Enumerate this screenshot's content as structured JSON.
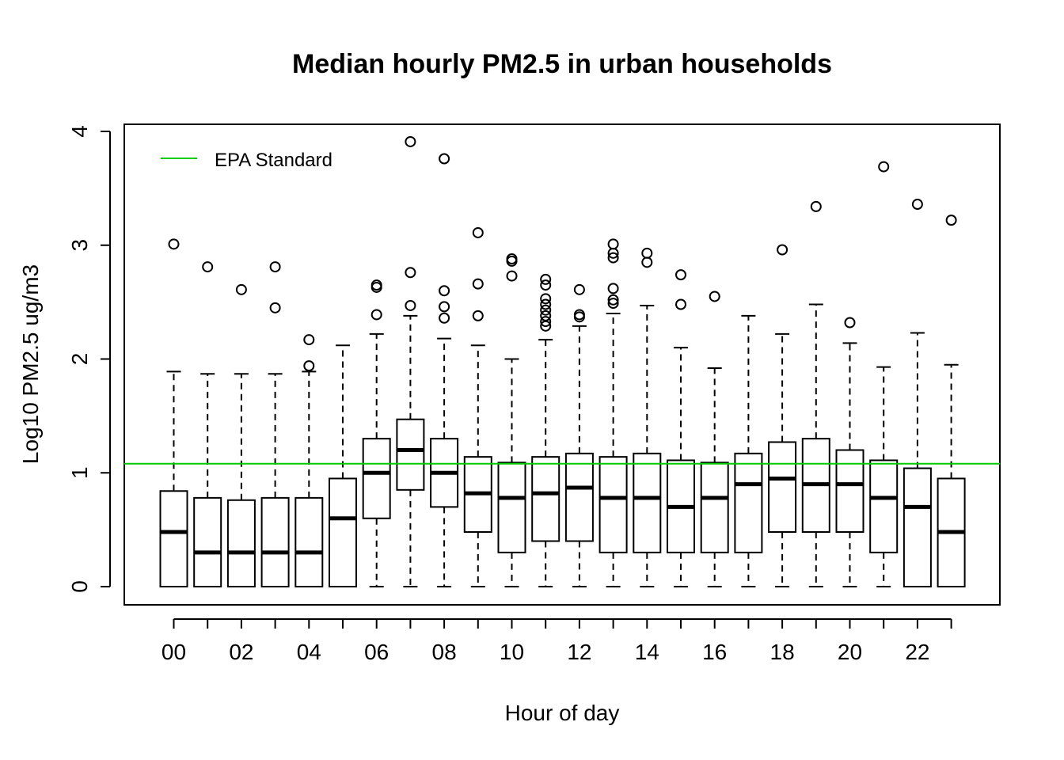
{
  "chart_data": {
    "type": "box",
    "title": "Median hourly PM2.5 in urban households",
    "xlabel": "Hour of day",
    "ylabel": "Log10 PM2.5 ug/m3",
    "ylim": [
      0,
      4
    ],
    "y_ticks": [
      "0",
      "1",
      "2",
      "3",
      "4"
    ],
    "categories": [
      "00",
      "01",
      "02",
      "03",
      "04",
      "05",
      "06",
      "07",
      "08",
      "09",
      "10",
      "11",
      "12",
      "13",
      "14",
      "15",
      "16",
      "17",
      "18",
      "19",
      "20",
      "21",
      "22",
      "23"
    ],
    "x_tick_labels": [
      "00",
      "02",
      "04",
      "06",
      "08",
      "10",
      "12",
      "14",
      "16",
      "18",
      "20",
      "22"
    ],
    "boxes": [
      {
        "whisker_low": 0,
        "q1": 0,
        "median": 0.48,
        "q3": 0.84,
        "whisker_high": 1.89,
        "outliers": [
          3.01
        ]
      },
      {
        "whisker_low": 0,
        "q1": 0,
        "median": 0.3,
        "q3": 0.78,
        "whisker_high": 1.87,
        "outliers": [
          2.81
        ]
      },
      {
        "whisker_low": 0,
        "q1": 0,
        "median": 0.3,
        "q3": 0.76,
        "whisker_high": 1.87,
        "outliers": [
          2.61
        ]
      },
      {
        "whisker_low": 0,
        "q1": 0,
        "median": 0.3,
        "q3": 0.78,
        "whisker_high": 1.87,
        "outliers": [
          2.81,
          2.45
        ]
      },
      {
        "whisker_low": 0,
        "q1": 0,
        "median": 0.3,
        "q3": 0.78,
        "whisker_high": 1.89,
        "outliers": [
          2.17,
          1.94
        ]
      },
      {
        "whisker_low": 0,
        "q1": 0,
        "median": 0.6,
        "q3": 0.95,
        "whisker_high": 2.12,
        "outliers": []
      },
      {
        "whisker_low": 0,
        "q1": 0.6,
        "median": 1.0,
        "q3": 1.3,
        "whisker_high": 2.22,
        "outliers": [
          2.65,
          2.63,
          2.39
        ]
      },
      {
        "whisker_low": 0,
        "q1": 0.85,
        "median": 1.2,
        "q3": 1.47,
        "whisker_high": 2.38,
        "outliers": [
          3.91,
          2.76,
          2.47
        ]
      },
      {
        "whisker_low": 0,
        "q1": 0.7,
        "median": 1.0,
        "q3": 1.3,
        "whisker_high": 2.18,
        "outliers": [
          3.76,
          2.6,
          2.46,
          2.36
        ]
      },
      {
        "whisker_low": 0,
        "q1": 0.48,
        "median": 0.82,
        "q3": 1.14,
        "whisker_high": 2.12,
        "outliers": [
          3.11,
          2.66,
          2.38
        ]
      },
      {
        "whisker_low": 0,
        "q1": 0.3,
        "median": 0.78,
        "q3": 1.09,
        "whisker_high": 2.0,
        "outliers": [
          2.88,
          2.86,
          2.73
        ]
      },
      {
        "whisker_low": 0,
        "q1": 0.4,
        "median": 0.82,
        "q3": 1.14,
        "whisker_high": 2.17,
        "outliers": [
          2.7,
          2.65,
          2.53,
          2.48,
          2.43,
          2.38,
          2.33,
          2.29
        ]
      },
      {
        "whisker_low": 0,
        "q1": 0.4,
        "median": 0.87,
        "q3": 1.17,
        "whisker_high": 2.29,
        "outliers": [
          2.61,
          2.39,
          2.37
        ]
      },
      {
        "whisker_low": 0,
        "q1": 0.3,
        "median": 0.78,
        "q3": 1.14,
        "whisker_high": 2.4,
        "outliers": [
          3.01,
          2.93,
          2.89,
          2.62,
          2.52,
          2.49
        ]
      },
      {
        "whisker_low": 0,
        "q1": 0.3,
        "median": 0.78,
        "q3": 1.17,
        "whisker_high": 2.47,
        "outliers": [
          2.93,
          2.85
        ]
      },
      {
        "whisker_low": 0,
        "q1": 0.3,
        "median": 0.7,
        "q3": 1.11,
        "whisker_high": 2.1,
        "outliers": [
          2.74,
          2.48
        ]
      },
      {
        "whisker_low": 0,
        "q1": 0.3,
        "median": 0.78,
        "q3": 1.09,
        "whisker_high": 1.92,
        "outliers": [
          2.55
        ]
      },
      {
        "whisker_low": 0,
        "q1": 0.3,
        "median": 0.9,
        "q3": 1.17,
        "whisker_high": 2.38,
        "outliers": []
      },
      {
        "whisker_low": 0,
        "q1": 0.48,
        "median": 0.95,
        "q3": 1.27,
        "whisker_high": 2.22,
        "outliers": [
          2.96
        ]
      },
      {
        "whisker_low": 0,
        "q1": 0.48,
        "median": 0.9,
        "q3": 1.3,
        "whisker_high": 2.48,
        "outliers": [
          3.34
        ]
      },
      {
        "whisker_low": 0,
        "q1": 0.48,
        "median": 0.9,
        "q3": 1.2,
        "whisker_high": 2.14,
        "outliers": [
          2.32
        ]
      },
      {
        "whisker_low": 0,
        "q1": 0.3,
        "median": 0.78,
        "q3": 1.11,
        "whisker_high": 1.93,
        "outliers": [
          3.69
        ]
      },
      {
        "whisker_low": 0,
        "q1": 0,
        "median": 0.7,
        "q3": 1.04,
        "whisker_high": 2.23,
        "outliers": [
          3.36
        ]
      },
      {
        "whisker_low": 0,
        "q1": 0,
        "median": 0.48,
        "q3": 0.95,
        "whisker_high": 1.95,
        "outliers": [
          3.22
        ]
      }
    ],
    "reference_line": {
      "name": "EPA Standard",
      "value": 1.08,
      "color": "#00cc00"
    },
    "legend": {
      "position": "top-left",
      "entries": [
        "EPA Standard"
      ]
    },
    "grid": false
  }
}
